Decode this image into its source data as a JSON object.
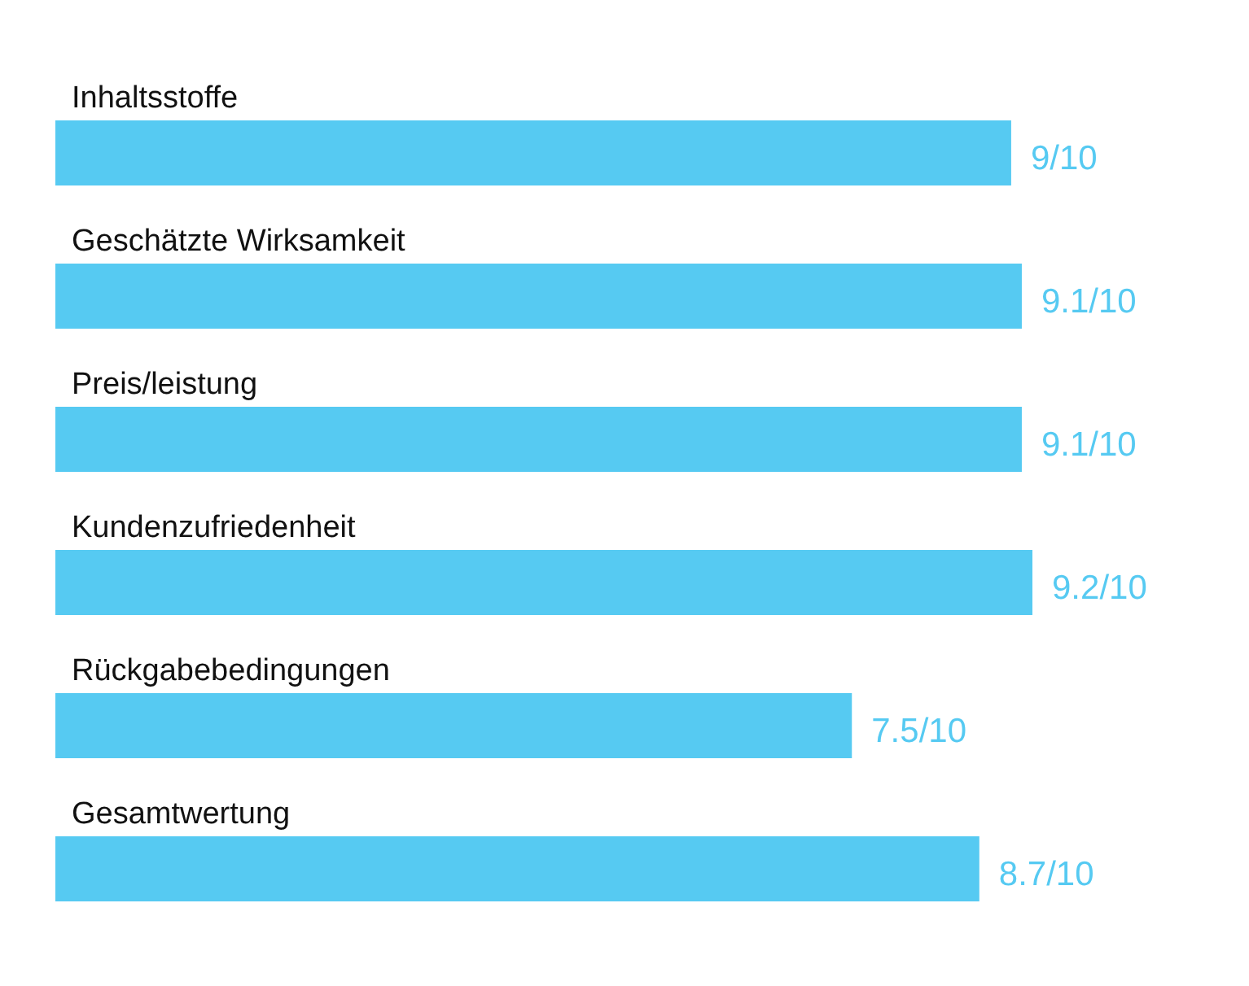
{
  "chart_data": {
    "type": "bar",
    "orientation": "horizontal",
    "categories": [
      "Inhaltsstoffe",
      "Geschätzte Wirksamkeit",
      "Preis/leistung",
      "Kundenzufriedenheit",
      "Rückgabebedingungen",
      "Gesamtwertung"
    ],
    "values": [
      0.9,
      0.91,
      0.91,
      0.92,
      0.75,
      0.87
    ],
    "value_labels": [
      "9/10",
      "9.1/10",
      "9.1/10",
      "9.2/10",
      "7.5/10",
      "8.7/10"
    ],
    "color": "#56caf2",
    "grid": false
  }
}
